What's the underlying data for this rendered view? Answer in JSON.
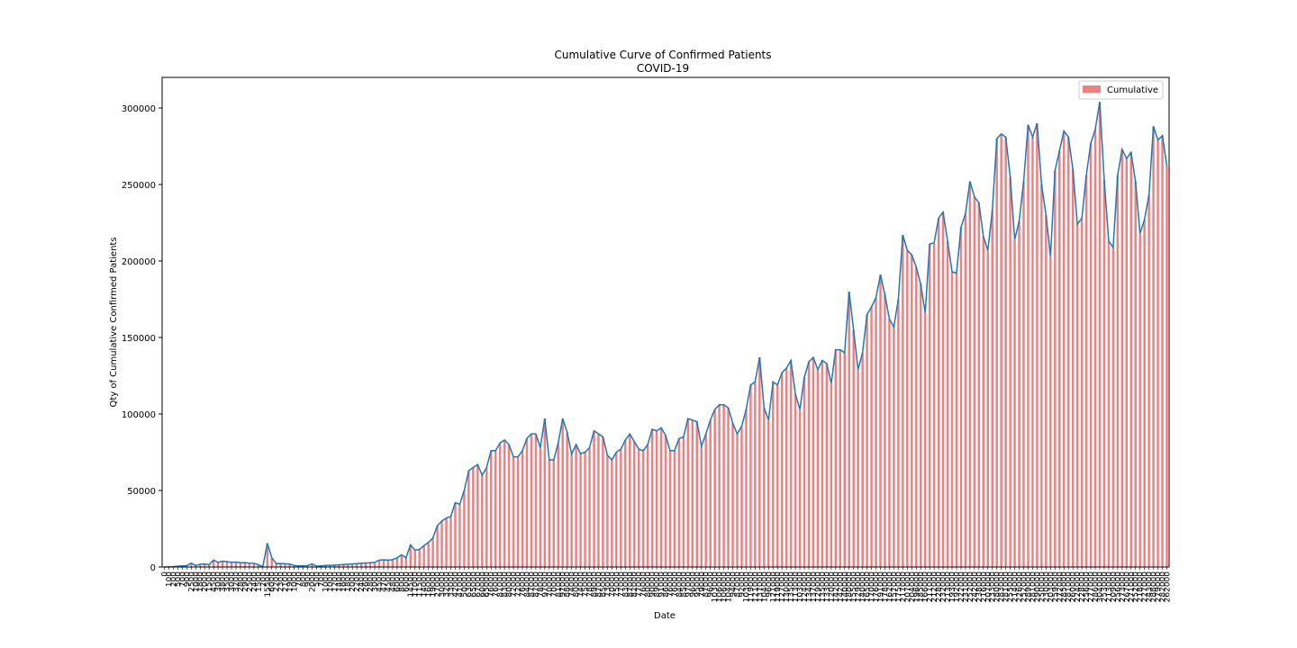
{
  "chart_data": {
    "type": "bar",
    "title": "Cumulative Curve of Confirmed Patients",
    "subtitle": "COVID-19",
    "xlabel": "Date",
    "ylabel": "Qty of Cumulative Confirmed Patients",
    "ylim": [
      0,
      320000
    ],
    "yticks": [
      0,
      50000,
      100000,
      150000,
      200000,
      250000,
      300000
    ],
    "ytick_labels": [
      "0",
      "50000",
      "100000",
      "150000",
      "200000",
      "250000",
      "300000"
    ],
    "grid": false,
    "legend_position": "top-right",
    "bar_color": "#f08080",
    "line_color": "#1f77b4",
    "series": [
      {
        "name": "Cumulative",
        "values": [
          0,
          100,
          200,
          500,
          700,
          900,
          2500,
          1000,
          1800,
          2000,
          1500,
          4500,
          3000,
          3800,
          3500,
          3000,
          3200,
          2800,
          2900,
          2500,
          2400,
          1500,
          200,
          15500,
          6000,
          2200,
          2300,
          2100,
          1900,
          1000,
          700,
          800,
          900,
          2000,
          500,
          700,
          1000,
          1000,
          1200,
          1400,
          1600,
          1800,
          2000,
          2200,
          2400,
          2600,
          2800,
          3000,
          4500,
          4700,
          4500,
          4800,
          6000,
          8000,
          6000,
          14500,
          11000,
          11500,
          14000,
          16000,
          19000,
          27000,
          30000,
          32000,
          33000,
          42000,
          41000,
          50000,
          63000,
          65000,
          67000,
          60000,
          65000,
          76000,
          76000,
          81000,
          83000,
          80000,
          72000,
          72000,
          76000,
          84000,
          87000,
          87000,
          78000,
          97000,
          70000,
          70000,
          81000,
          97000,
          88000,
          74000,
          80000,
          74000,
          75000,
          78000,
          89000,
          87000,
          85000,
          73000,
          70000,
          75000,
          77000,
          83000,
          87000,
          82000,
          77000,
          76000,
          80000,
          90000,
          89000,
          91000,
          86000,
          76000,
          76000,
          84000,
          85000,
          97000,
          96000,
          95000,
          79000,
          87000,
          96000,
          103000,
          106000,
          106000,
          104000,
          94000,
          87000,
          92000,
          103000,
          119000,
          121000,
          137000,
          104000,
          96000,
          121000,
          119000,
          127000,
          130000,
          135000,
          113000,
          103000,
          124000,
          134000,
          137000,
          129000,
          135000,
          133000,
          120000,
          142000,
          142000,
          140000,
          180000,
          155000,
          129000,
          140000,
          165000,
          170000,
          176000,
          191000,
          178000,
          162000,
          157000,
          175000,
          217000,
          207000,
          204000,
          196000,
          185000,
          166000,
          211000,
          212000,
          228000,
          232000,
          213000,
          193000,
          192000,
          222000,
          231000,
          252000,
          242000,
          238000,
          216000,
          207000,
          233000,
          280000,
          283000,
          281000,
          255000,
          214000,
          226000,
          252000,
          289000,
          281000,
          290000,
          250000,
          230000,
          203000,
          259000,
          272000,
          285000,
          281000,
          260000,
          224000,
          228000,
          256000,
          277000,
          286000,
          304000,
          253000,
          213000,
          209000,
          256000,
          273000,
          267000,
          271000,
          252000,
          218000,
          227000,
          243000,
          288000,
          279000,
          282000,
          262000
        ]
      }
    ]
  }
}
